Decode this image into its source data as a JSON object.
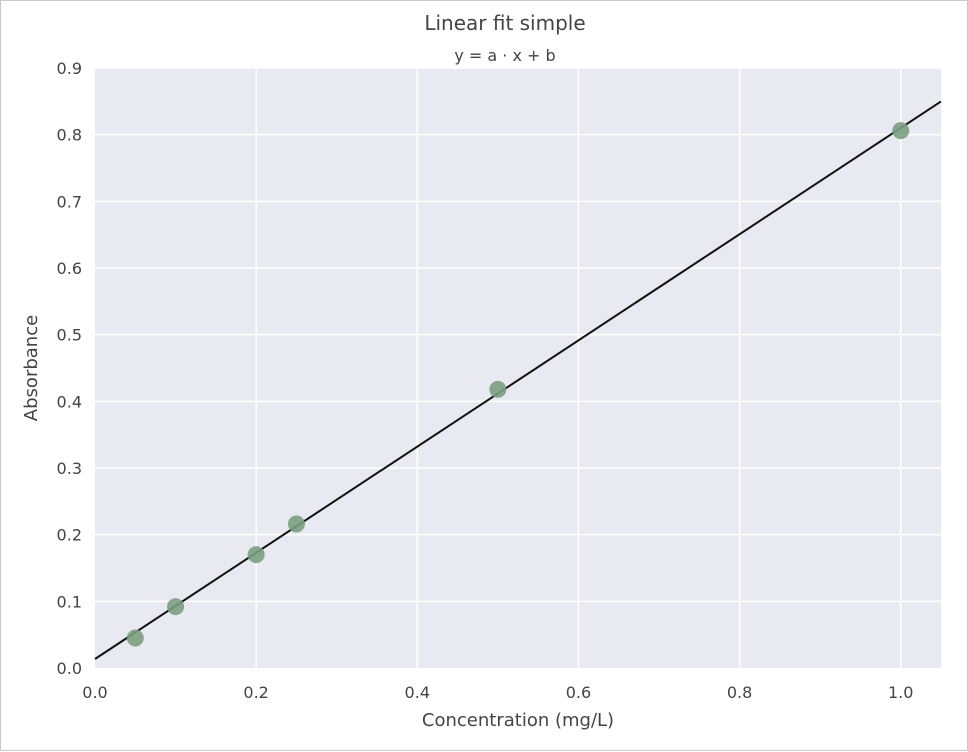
{
  "chart_data": {
    "type": "scatter",
    "title": "Linear fit simple",
    "subtitle": "y = a · x + b",
    "xlabel": "Concentration (mg/L)",
    "ylabel": "Absorbance",
    "xlim": [
      0.0,
      1.05
    ],
    "ylim": [
      0.0,
      0.9
    ],
    "x_ticks": [
      "0.0",
      "0.2",
      "0.4",
      "0.6",
      "0.8",
      "1.0"
    ],
    "y_ticks": [
      "0.0",
      "0.1",
      "0.2",
      "0.3",
      "0.4",
      "0.5",
      "0.6",
      "0.7",
      "0.8",
      "0.9"
    ],
    "grid": true,
    "series": [
      {
        "type": "scatter",
        "x": [
          0.05,
          0.1,
          0.2,
          0.25,
          0.5,
          1.0
        ],
        "y": [
          0.045,
          0.092,
          0.17,
          0.216,
          0.418,
          0.806
        ],
        "color": "#7a9e7e"
      },
      {
        "type": "line",
        "x": [
          0.0,
          1.05
        ],
        "y": [
          0.0135,
          0.8498
        ],
        "color": "#111111"
      }
    ],
    "colors": {
      "plot_background": "#e9e9f1",
      "grid": "#ffffff",
      "text": "#444444"
    }
  }
}
